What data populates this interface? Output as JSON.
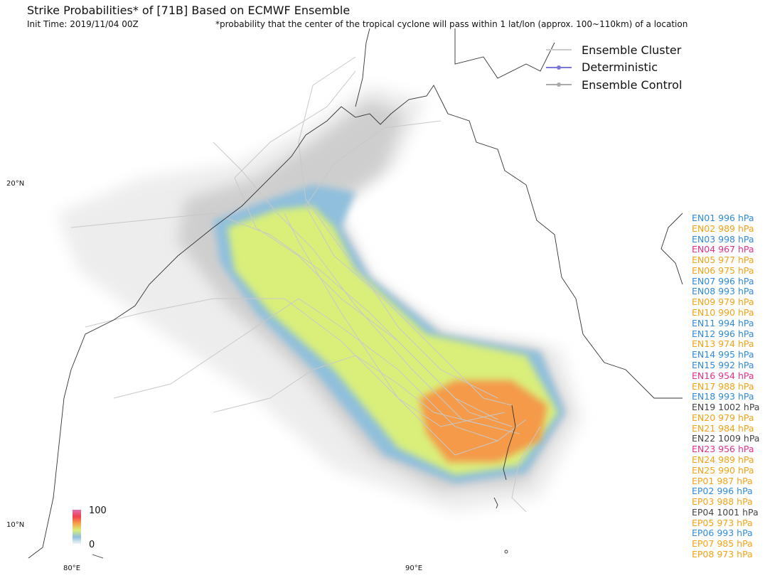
{
  "header": {
    "title": "Strike Probabilities* of [71B] Based on ECMWF Ensemble",
    "init_time": "Init Time: 2019/11/04 00Z",
    "footnote": "*probability that the center of the tropical cyclone will pass within 1 lat/lon (approx. 100~110km) of a location"
  },
  "legend": [
    {
      "label": "Ensemble Cluster",
      "color": "#cccccc",
      "marker": false
    },
    {
      "label": "Deterministic",
      "color": "#7b78d8",
      "marker": true
    },
    {
      "label": "Ensemble Control",
      "color": "#aaaaaa",
      "marker": true
    }
  ],
  "axes": {
    "lat_labels": [
      "20°N",
      "10°N"
    ],
    "lon_labels": [
      "80°E",
      "90°E"
    ]
  },
  "colorbar": {
    "max_label": "100",
    "min_label": "0"
  },
  "members": [
    {
      "label": "EN01 996 hPa",
      "color": "#2f8be0"
    },
    {
      "label": "EN02 989 hPa",
      "color": "#f5a214"
    },
    {
      "label": "EN03 998 hPa",
      "color": "#2f8be0"
    },
    {
      "label": "EN04 967 hPa",
      "color": "#ea2f8a"
    },
    {
      "label": "EN05 977 hPa",
      "color": "#f5a214"
    },
    {
      "label": "EN06 975 hPa",
      "color": "#f5a214"
    },
    {
      "label": "EN07 996 hPa",
      "color": "#2f8be0"
    },
    {
      "label": "EN08 993 hPa",
      "color": "#2f8be0"
    },
    {
      "label": "EN09 979 hPa",
      "color": "#f5a214"
    },
    {
      "label": "EN10 990 hPa",
      "color": "#f5a214"
    },
    {
      "label": "EN11 994 hPa",
      "color": "#2f8be0"
    },
    {
      "label": "EN12 996 hPa",
      "color": "#2f8be0"
    },
    {
      "label": "EN13 974 hPa",
      "color": "#f5a214"
    },
    {
      "label": "EN14 995 hPa",
      "color": "#2f8be0"
    },
    {
      "label": "EN15 992 hPa",
      "color": "#2f8be0"
    },
    {
      "label": "EN16 954 hPa",
      "color": "#ea2f8a"
    },
    {
      "label": "EN17 988 hPa",
      "color": "#f5a214"
    },
    {
      "label": "EN18 993 hPa",
      "color": "#2f8be0"
    },
    {
      "label": "EN19 1002 hPa",
      "color": "#444444"
    },
    {
      "label": "EN20 979 hPa",
      "color": "#f5a214"
    },
    {
      "label": "EN21 984 hPa",
      "color": "#f5a214"
    },
    {
      "label": "EN22 1009 hPa",
      "color": "#444444"
    },
    {
      "label": "EN23 956 hPa",
      "color": "#ea2f8a"
    },
    {
      "label": "EN24 989 hPa",
      "color": "#f5a214"
    },
    {
      "label": "EN25 990 hPa",
      "color": "#f5a214"
    },
    {
      "label": "EP01 987 hPa",
      "color": "#f5a214"
    },
    {
      "label": "EP02 996 hPa",
      "color": "#2f8be0"
    },
    {
      "label": "EP03 988 hPa",
      "color": "#f5a214"
    },
    {
      "label": "EP04 1001 hPa",
      "color": "#444444"
    },
    {
      "label": "EP05 973 hPa",
      "color": "#f5a214"
    },
    {
      "label": "EP06 993 hPa",
      "color": "#2f8be0"
    },
    {
      "label": "EP07 985 hPa",
      "color": "#f5a214"
    },
    {
      "label": "EP08 973 hPa",
      "color": "#f5a214"
    }
  ]
}
